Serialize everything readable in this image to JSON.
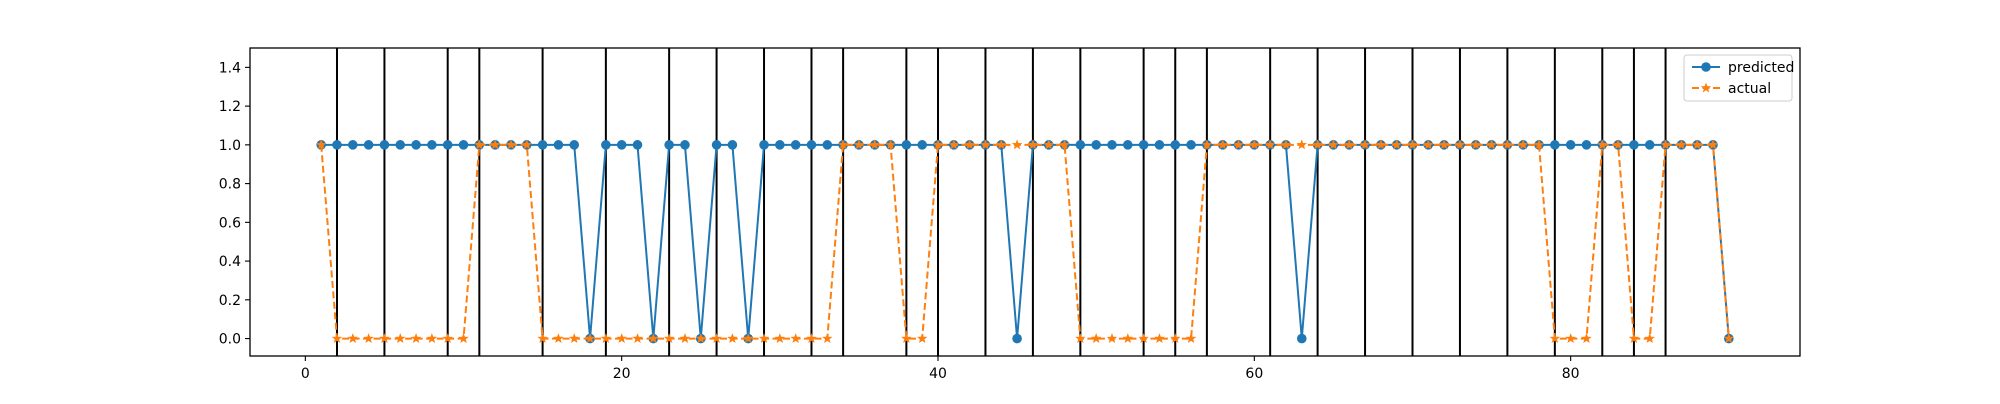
{
  "chart_data": {
    "type": "line",
    "title": "",
    "xlabel": "",
    "ylabel": "",
    "xlim": [
      -3.5,
      94.5
    ],
    "ylim": [
      -0.09,
      1.5
    ],
    "xticks": [
      0,
      20,
      40,
      60,
      80
    ],
    "yticks": [
      0.0,
      0.2,
      0.4,
      0.6,
      0.8,
      1.0,
      1.2,
      1.4
    ],
    "ytick_labels": [
      "0.0",
      "0.2",
      "0.4",
      "0.6",
      "0.8",
      "1.0",
      "1.2",
      "1.4"
    ],
    "grid": false,
    "legend_position": "top-right",
    "vertical_lines": [
      2,
      5,
      9,
      11,
      15,
      19,
      23,
      26,
      29,
      32,
      34,
      38,
      40,
      43,
      46,
      49,
      53,
      55,
      57,
      61,
      64,
      67,
      70,
      73,
      76,
      79,
      82,
      84,
      86
    ],
    "x": [
      1,
      2,
      3,
      4,
      5,
      6,
      7,
      8,
      9,
      10,
      11,
      12,
      13,
      14,
      15,
      16,
      17,
      18,
      19,
      20,
      21,
      22,
      23,
      24,
      25,
      26,
      27,
      28,
      29,
      30,
      31,
      32,
      33,
      34,
      35,
      36,
      37,
      38,
      39,
      40,
      41,
      42,
      43,
      44,
      45,
      46,
      47,
      48,
      49,
      50,
      51,
      52,
      53,
      54,
      55,
      56,
      57,
      58,
      59,
      60,
      61,
      62,
      63,
      64,
      65,
      66,
      67,
      68,
      69,
      70,
      71,
      72,
      73,
      74,
      75,
      76,
      77,
      78,
      79,
      80,
      81,
      82,
      83,
      84,
      85,
      86,
      87,
      88,
      89,
      90
    ],
    "series": [
      {
        "name": "predicted",
        "color": "#1f77b4",
        "style": "solid",
        "marker": "circle",
        "values": [
          1,
          1,
          1,
          1,
          1,
          1,
          1,
          1,
          1,
          1,
          1,
          1,
          1,
          1,
          1,
          1,
          1,
          0,
          1,
          1,
          1,
          0,
          1,
          1,
          0,
          1,
          1,
          0,
          1,
          1,
          1,
          1,
          1,
          1,
          1,
          1,
          1,
          1,
          1,
          1,
          1,
          1,
          1,
          1,
          0,
          1,
          1,
          1,
          1,
          1,
          1,
          1,
          1,
          1,
          1,
          1,
          1,
          1,
          1,
          1,
          1,
          1,
          0,
          1,
          1,
          1,
          1,
          1,
          1,
          1,
          1,
          1,
          1,
          1,
          1,
          1,
          1,
          1,
          1,
          1,
          1,
          1,
          1,
          1,
          1,
          1,
          1,
          1,
          1,
          0
        ]
      },
      {
        "name": "actual",
        "color": "#ff7f0e",
        "style": "dashed",
        "marker": "star",
        "values": [
          1,
          0,
          0,
          0,
          0,
          0,
          0,
          0,
          0,
          0,
          1,
          1,
          1,
          1,
          0,
          0,
          0,
          0,
          0,
          0,
          0,
          0,
          0,
          0,
          0,
          0,
          0,
          0,
          0,
          0,
          0,
          0,
          0,
          1,
          1,
          1,
          1,
          0,
          0,
          1,
          1,
          1,
          1,
          1,
          1,
          1,
          1,
          1,
          0,
          0,
          0,
          0,
          0,
          0,
          0,
          0,
          1,
          1,
          1,
          1,
          1,
          1,
          1,
          1,
          1,
          1,
          1,
          1,
          1,
          1,
          1,
          1,
          1,
          1,
          1,
          1,
          1,
          1,
          0,
          0,
          0,
          1,
          1,
          0,
          0,
          1,
          1,
          1,
          1,
          0
        ]
      }
    ]
  }
}
